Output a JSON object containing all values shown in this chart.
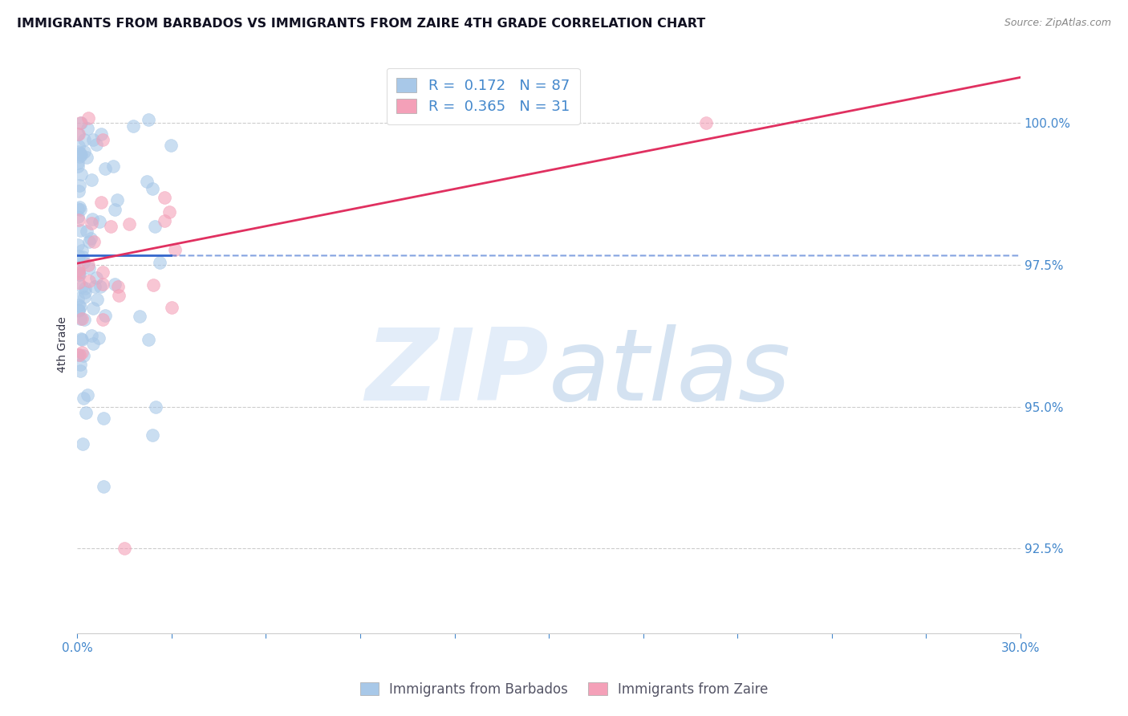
{
  "title": "IMMIGRANTS FROM BARBADOS VS IMMIGRANTS FROM ZAIRE 4TH GRADE CORRELATION CHART",
  "source": "Source: ZipAtlas.com",
  "ylabel": "4th Grade",
  "ylabel_right_ticks": [
    "100.0%",
    "97.5%",
    "95.0%",
    "92.5%"
  ],
  "ylabel_right_values": [
    100.0,
    97.5,
    95.0,
    92.5
  ],
  "xmin": 0.0,
  "xmax": 30.0,
  "ymin": 91.0,
  "ymax": 101.2,
  "r_barbados": 0.172,
  "n_barbados": 87,
  "r_zaire": 0.365,
  "n_zaire": 31,
  "color_barbados": "#a8c8e8",
  "color_zaire": "#f4a0b8",
  "color_trendline_barbados": "#3366cc",
  "color_trendline_zaire": "#e03060",
  "watermark_zip": "ZIP",
  "watermark_atlas": "atlas",
  "watermark_color_zip": "#c8dff5",
  "watermark_color_atlas": "#9abdd8",
  "legend_label_barbados": "Immigrants from Barbados",
  "legend_label_zaire": "Immigrants from Zaire"
}
